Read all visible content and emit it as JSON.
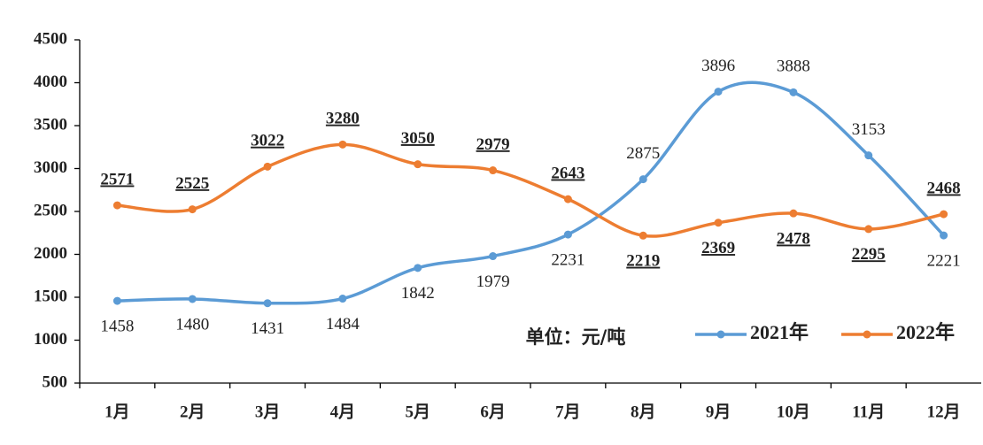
{
  "chart_data": {
    "type": "line",
    "categories": [
      "1月",
      "2月",
      "3月",
      "4月",
      "5月",
      "6月",
      "7月",
      "8月",
      "9月",
      "10月",
      "11月",
      "12月"
    ],
    "series": [
      {
        "name": "2021年",
        "color": "#5b9bd5",
        "values": [
          1458,
          1480,
          1431,
          1484,
          1842,
          1979,
          2231,
          2875,
          3896,
          3888,
          3153,
          2221
        ]
      },
      {
        "name": "2022年",
        "color": "#ed7d31",
        "values": [
          2571,
          2525,
          3022,
          3280,
          3050,
          2979,
          2643,
          2219,
          2369,
          2478,
          2295,
          2468
        ]
      }
    ],
    "ylim": [
      500,
      4500
    ],
    "yticks": [
      500,
      1000,
      1500,
      2000,
      2500,
      3000,
      3500,
      4000,
      4500
    ],
    "annotation": "单位：元/吨",
    "grid": false,
    "legend": "bottom-right",
    "smooth": true
  }
}
